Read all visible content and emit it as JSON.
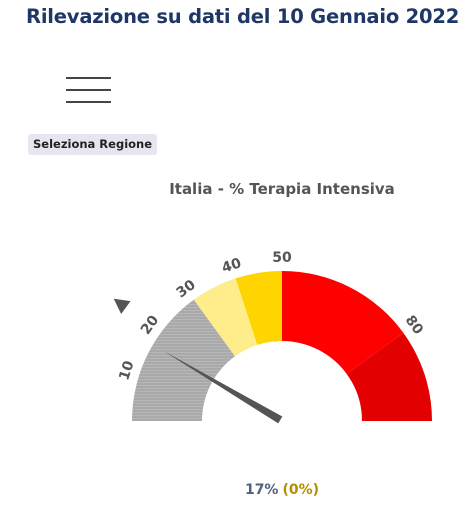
{
  "page_title": "Rilevazione su dati del 10 Gennaio 2022",
  "menu_icon": "hamburger-menu-icon",
  "region_button_label": "Seleziona Regione",
  "colors": {
    "title": "#1f3766",
    "gray_band": "#a9a9a9",
    "light_yellow_band": "#ffec8a",
    "yellow_band": "#ffd400",
    "red_band": "#ff0000",
    "dark_red_band": "#e20000",
    "needle": "#555555",
    "value_text": "#506080",
    "change_text": "#b38f00"
  },
  "chart_data": {
    "type": "gauge",
    "title": "Italia - % Terapia Intensiva",
    "min": 0,
    "max": 100,
    "bands": [
      {
        "from": 0,
        "to": 30,
        "color": "#a9a9a9"
      },
      {
        "from": 30,
        "to": 40,
        "color": "#ffec8a"
      },
      {
        "from": 40,
        "to": 50,
        "color": "#ffd400"
      },
      {
        "from": 50,
        "to": 80,
        "color": "#ff0000"
      },
      {
        "from": 80,
        "to": 100,
        "color": "#e20000"
      }
    ],
    "tick_labels": [
      {
        "value": 10,
        "label": "10"
      },
      {
        "value": 20,
        "label": "20"
      },
      {
        "value": 30,
        "label": "30"
      },
      {
        "value": 40,
        "label": "40"
      },
      {
        "value": 50,
        "label": "50"
      },
      {
        "value": 80,
        "label": "80"
      }
    ],
    "marker_value": 20,
    "needle_value": 17,
    "value_label": "17%",
    "change_label": "(0%)"
  }
}
